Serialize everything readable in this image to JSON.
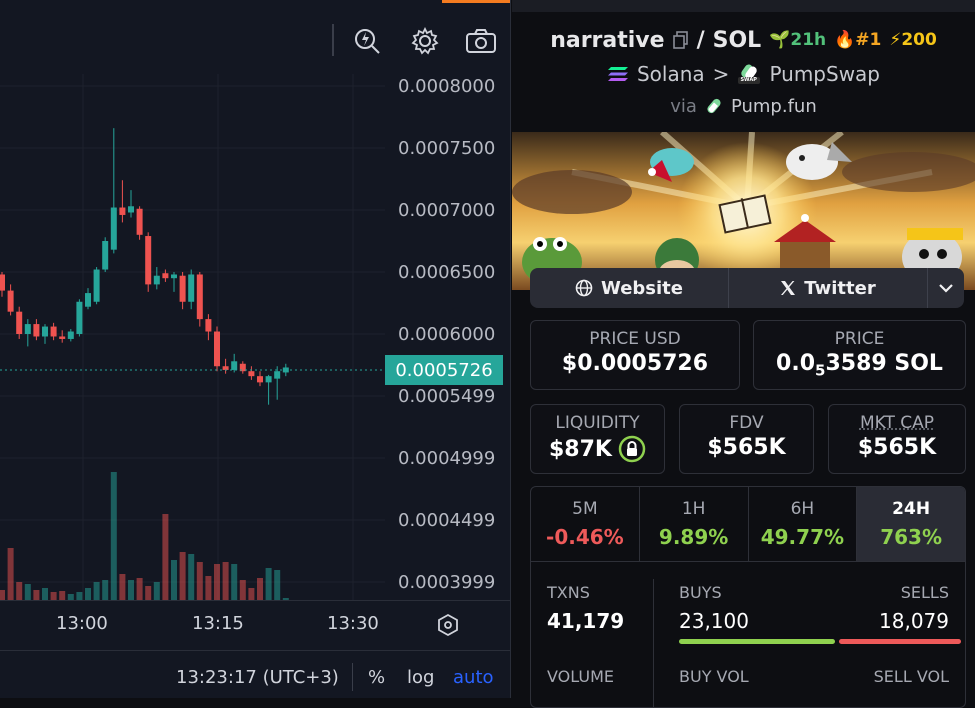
{
  "chart": {
    "price_labels": [
      "0.0008000",
      "0.0007500",
      "0.0007000",
      "0.0006500",
      "0.0006000",
      "0.0005499",
      "0.0004999",
      "0.0004499",
      "0.0003999"
    ],
    "current_price": "0.0005726",
    "time_labels": [
      "13:00",
      "13:15",
      "13:30"
    ],
    "clock": "13:23:17 (UTC+3)",
    "percent_label": "%",
    "log_label": "log",
    "auto_label": "auto",
    "colors": {
      "up": "#26a69a",
      "down": "#ef5350",
      "accent": "#f47b20"
    }
  },
  "chart_data": {
    "type": "candlestick",
    "ylim": [
      0.0003999,
      0.0008
    ],
    "x_ticks": [
      "13:00",
      "13:15",
      "13:30"
    ],
    "candles": [
      {
        "o": 0.000648,
        "h": 0.00065,
        "l": 0.00063,
        "c": 0.000635
      },
      {
        "o": 0.000635,
        "h": 0.00064,
        "l": 0.000615,
        "c": 0.000618
      },
      {
        "o": 0.000618,
        "h": 0.000622,
        "l": 0.000596,
        "c": 0.0006
      },
      {
        "o": 0.0006,
        "h": 0.000612,
        "l": 0.00059,
        "c": 0.000608
      },
      {
        "o": 0.000608,
        "h": 0.000612,
        "l": 0.000595,
        "c": 0.000598
      },
      {
        "o": 0.000598,
        "h": 0.000608,
        "l": 0.000592,
        "c": 0.000606
      },
      {
        "o": 0.000606,
        "h": 0.000609,
        "l": 0.000595,
        "c": 0.000598
      },
      {
        "o": 0.000598,
        "h": 0.000603,
        "l": 0.000593,
        "c": 0.000596
      },
      {
        "o": 0.000596,
        "h": 0.000604,
        "l": 0.000594,
        "c": 0.000602
      },
      {
        "o": 0.0006,
        "h": 0.000628,
        "l": 0.000598,
        "c": 0.000626
      },
      {
        "o": 0.000622,
        "h": 0.000637,
        "l": 0.00062,
        "c": 0.000633
      },
      {
        "o": 0.000626,
        "h": 0.000654,
        "l": 0.000624,
        "c": 0.000652
      },
      {
        "o": 0.000652,
        "h": 0.000678,
        "l": 0.00065,
        "c": 0.000675
      },
      {
        "o": 0.000668,
        "h": 0.000766,
        "l": 0.000665,
        "c": 0.000702
      },
      {
        "o": 0.000702,
        "h": 0.000724,
        "l": 0.00069,
        "c": 0.000696
      },
      {
        "o": 0.000698,
        "h": 0.000716,
        "l": 0.000694,
        "c": 0.000703
      },
      {
        "o": 0.000701,
        "h": 0.000703,
        "l": 0.000676,
        "c": 0.00068
      },
      {
        "o": 0.000679,
        "h": 0.000682,
        "l": 0.000634,
        "c": 0.00064
      },
      {
        "o": 0.00064,
        "h": 0.000654,
        "l": 0.000636,
        "c": 0.000647
      },
      {
        "o": 0.000649,
        "h": 0.000652,
        "l": 0.000642,
        "c": 0.000645
      },
      {
        "o": 0.000645,
        "h": 0.00065,
        "l": 0.000634,
        "c": 0.000648
      },
      {
        "o": 0.000647,
        "h": 0.00065,
        "l": 0.00062,
        "c": 0.000626
      },
      {
        "o": 0.000626,
        "h": 0.000652,
        "l": 0.00062,
        "c": 0.000648
      },
      {
        "o": 0.000648,
        "h": 0.00065,
        "l": 0.000606,
        "c": 0.000612
      },
      {
        "o": 0.000612,
        "h": 0.000616,
        "l": 0.000595,
        "c": 0.000602
      },
      {
        "o": 0.000602,
        "h": 0.000606,
        "l": 0.00057,
        "c": 0.000574
      },
      {
        "o": 0.000574,
        "h": 0.00058,
        "l": 0.000568,
        "c": 0.000571
      },
      {
        "o": 0.000571,
        "h": 0.000584,
        "l": 0.000569,
        "c": 0.000578
      },
      {
        "o": 0.000576,
        "h": 0.000578,
        "l": 0.000568,
        "c": 0.00057
      },
      {
        "o": 0.00057,
        "h": 0.000574,
        "l": 0.000563,
        "c": 0.000566
      },
      {
        "o": 0.000566,
        "h": 0.00057,
        "l": 0.000558,
        "c": 0.000561
      },
      {
        "o": 0.000561,
        "h": 0.000567,
        "l": 0.000543,
        "c": 0.000566
      },
      {
        "o": 0.000564,
        "h": 0.000574,
        "l": 0.000547,
        "c": 0.00057
      },
      {
        "o": 0.000569,
        "h": 0.000576,
        "l": 0.000566,
        "c": 0.000573
      }
    ],
    "volumes": [
      10,
      52,
      18,
      16,
      10,
      12,
      8,
      9,
      6,
      8,
      12,
      18,
      20,
      128,
      26,
      20,
      22,
      14,
      18,
      86,
      40,
      48,
      46,
      38,
      24,
      36,
      38,
      36,
      20,
      12,
      22,
      32,
      30,
      2
    ]
  },
  "token": {
    "name": "narrative",
    "slash": "/",
    "quote": "SOL",
    "age": "21h",
    "rank": "#1",
    "boosts": "200"
  },
  "chain": {
    "name": "Solana",
    "sep": ">",
    "dex": "PumpSwap",
    "dex_badge": "SWAP"
  },
  "via": {
    "label": "via",
    "source": "Pump.fun"
  },
  "links": {
    "website": "Website",
    "twitter": "Twitter"
  },
  "stats": {
    "price_usd_label": "PRICE USD",
    "price_usd": "$0.0005726",
    "price_label": "PRICE",
    "price_prefix": "0.0",
    "price_sub": "5",
    "price_rest": "3589 SOL",
    "liquidity_label": "LIQUIDITY",
    "liquidity": "$87K",
    "fdv_label": "FDV",
    "fdv": "$565K",
    "mcap_label": "MKT CAP",
    "mcap": "$565K"
  },
  "timeframes": [
    {
      "label": "5M",
      "value": "-0.46%"
    },
    {
      "label": "1H",
      "value": "9.89%"
    },
    {
      "label": "6H",
      "value": "49.77%"
    },
    {
      "label": "24H",
      "value": "763%"
    }
  ],
  "txns": {
    "txns_label": "TXNS",
    "txns": "41,179",
    "buys_label": "BUYS",
    "buys": "23,100",
    "sells_label": "SELLS",
    "sells": "18,079",
    "buys_fraction": 0.561,
    "volume_label": "VOLUME",
    "buy_vol_label": "BUY VOL",
    "sell_vol_label": "SELL VOL"
  }
}
